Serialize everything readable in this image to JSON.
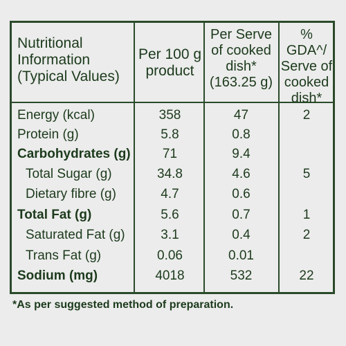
{
  "header": {
    "col1": "Nutritional Information (Typical Values)",
    "col2": "Per 100 g product",
    "col3": "Per Serve of cooked dish* (163.25 g)",
    "col4": "% GDA^/ Serve of cooked dish*"
  },
  "rows": [
    {
      "name": "Energy (kcal)",
      "per100": "358",
      "perServe": "47",
      "gda": "2"
    },
    {
      "name": "Protein (g)",
      "per100": "5.8",
      "perServe": "0.8",
      "gda": ""
    },
    {
      "name": "Carbohydrates (g)",
      "per100": "71",
      "perServe": "9.4",
      "gda": ""
    },
    {
      "name": "Total Sugar (g)",
      "per100": "34.8",
      "perServe": "4.6",
      "gda": "5"
    },
    {
      "name": "Dietary fibre (g)",
      "per100": "4.7",
      "perServe": "0.6",
      "gda": ""
    },
    {
      "name": "Total Fat (g)",
      "per100": "5.6",
      "perServe": "0.7",
      "gda": "1"
    },
    {
      "name": "Saturated Fat (g)",
      "per100": "3.1",
      "perServe": "0.4",
      "gda": "2"
    },
    {
      "name": "Trans Fat (g)",
      "per100": "0.06",
      "perServe": "0.01",
      "gda": ""
    },
    {
      "name": "Sodium (mg)",
      "per100": "4018",
      "perServe": "532",
      "gda": "22"
    }
  ],
  "footnote": "*As per suggested method of preparation.",
  "colors": {
    "background": "#ececec",
    "ink": "#1c3a1c",
    "border": "#2a4a2a"
  }
}
